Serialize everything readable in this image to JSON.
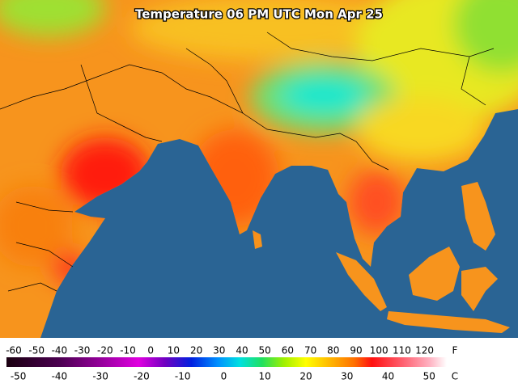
{
  "title": "Temperature 06 PM UTC Mon Apr 25",
  "legend": {
    "fahrenheit": {
      "unit": "F",
      "ticks": [
        -60,
        -50,
        -40,
        -30,
        -20,
        -10,
        0,
        10,
        20,
        30,
        40,
        50,
        60,
        70,
        80,
        90,
        100,
        110,
        120
      ]
    },
    "celsius": {
      "unit": "C",
      "ticks": [
        -50,
        -40,
        -30,
        -20,
        -10,
        0,
        10,
        20,
        30,
        40,
        50
      ]
    }
  }
}
